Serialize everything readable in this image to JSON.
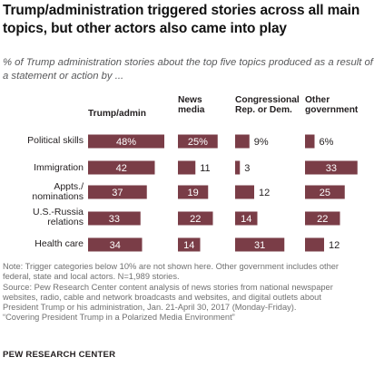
{
  "title": "Trump/administration  triggered stories across all main topics, but other actors also came into play",
  "subtitle": "% of Trump administration stories about the top five topics produced as a result of a statement or action by ...",
  "colors": {
    "bar": "#7a3d47",
    "bar_text": "#ffffff",
    "outside_text": "#231f20"
  },
  "chart_data": {
    "type": "bar",
    "columns": [
      "Trump/admin",
      "News\nmedia",
      "Congressional\nRep. or Dem.",
      "Other\ngovernment"
    ],
    "categories": [
      "Political skills",
      "Immigration",
      "Appts./\nnominations",
      "U.S.-Russia\nrelations",
      "Health care"
    ],
    "values": [
      [
        48,
        25,
        9,
        6
      ],
      [
        42,
        11,
        3,
        33
      ],
      [
        37,
        19,
        12,
        25
      ],
      [
        33,
        22,
        14,
        22
      ],
      [
        34,
        14,
        31,
        12
      ]
    ],
    "value_labels": [
      [
        "48%",
        "25%",
        "9%",
        "6%"
      ],
      [
        "42",
        "11",
        "3",
        "33"
      ],
      [
        "37",
        "19",
        "12",
        "25"
      ],
      [
        "33",
        "22",
        "14",
        "22"
      ],
      [
        "34",
        "14",
        "31",
        "12"
      ]
    ]
  },
  "notes": [
    "Note: Trigger categories below 10% are not shown here. Other government includes other",
    "federal, state and local actors. N=1,989 stories.",
    "Source: Pew Research Center content analysis of news stories from national newspaper",
    "websites, radio, cable and network broadcasts and websites, and digital outlets about",
    "President Trump or his administration, Jan. 21-April 30, 2017 (Monday-Friday).",
    "“Covering President Trump in a Polarized Media Environment”"
  ],
  "source_brand": "PEW RESEARCH CENTER"
}
